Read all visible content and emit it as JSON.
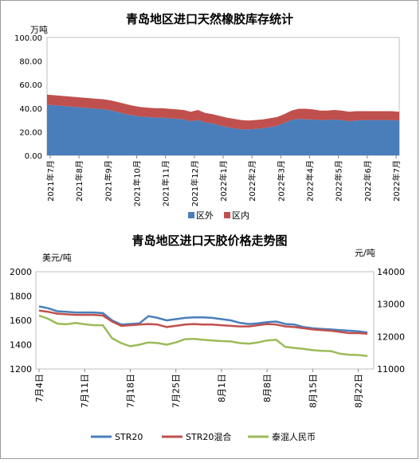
{
  "chart_data": [
    {
      "type": "area",
      "title": "青岛地区进口天然橡胶库存统计",
      "ylabel": "万吨",
      "ylim": [
        0,
        100
      ],
      "yticks": [
        "0.00",
        "20.00",
        "40.00",
        "60.00",
        "80.00",
        "100.00"
      ],
      "xticks": [
        "2021年7月",
        "2021年8月",
        "2021年9月",
        "2021年10月",
        "2021年11月",
        "2021年12月",
        "2022年1月",
        "2022年2月",
        "2022年3月",
        "2022年4月",
        "2022年5月",
        "2022年6月",
        "2022年7月"
      ],
      "legend_position": "bottom",
      "grid": false,
      "series": [
        {
          "name": "区外",
          "color": "#4A7EBB",
          "values": [
            43,
            42.5,
            42,
            41.5,
            41,
            40.5,
            40,
            39.5,
            39,
            38,
            36.5,
            35,
            34,
            33,
            32.5,
            32,
            32,
            31.5,
            31,
            30.5,
            29,
            30,
            28,
            27,
            25.5,
            24,
            23,
            22,
            22,
            22.5,
            23,
            24,
            25,
            27.5,
            30,
            31,
            30.5,
            30.5,
            30,
            30,
            30.5,
            30,
            29,
            29.5,
            30,
            30,
            30,
            30,
            30,
            29.5
          ]
        },
        {
          "name": "区内",
          "color": "#C0504D",
          "values": [
            8.5,
            8.5,
            8.5,
            8.5,
            8.5,
            8.5,
            8.5,
            8.5,
            8.5,
            8.5,
            8.5,
            8.5,
            8,
            8,
            8,
            8,
            8,
            8,
            8,
            8,
            8,
            8.5,
            8,
            8,
            8,
            8,
            8,
            8,
            7.5,
            7.5,
            7.5,
            7.5,
            7.5,
            7.5,
            8,
            8.5,
            9,
            8.5,
            8,
            8,
            8,
            8,
            8,
            8,
            7.5,
            7.5,
            7.5,
            7.5,
            7.5,
            7.5
          ]
        }
      ]
    },
    {
      "type": "line",
      "title": "青岛地区进口天胶价格走势图",
      "ylabel": "美元/吨",
      "y2label": "元/吨",
      "ylim": [
        1200,
        2000
      ],
      "y2lim": [
        11000,
        14000
      ],
      "yticks": [
        "1200",
        "1400",
        "1600",
        "1800",
        "2000"
      ],
      "y2ticks": [
        "11000",
        "12000",
        "13000",
        "14000"
      ],
      "xticks": [
        "7月4日",
        "7月11日",
        "7月18日",
        "7月25日",
        "8月1日",
        "8月8日",
        "8月15日",
        "8月22日"
      ],
      "xtick_index": [
        0,
        5,
        10,
        15,
        20,
        25,
        30,
        35
      ],
      "legend_position": "bottom",
      "grid": false,
      "series": [
        {
          "name": "STR20",
          "axis": "left",
          "color": "#4A7EBB",
          "values": [
            1715,
            1700,
            1675,
            1670,
            1665,
            1665,
            1665,
            1660,
            1600,
            1565,
            1570,
            1575,
            1635,
            1620,
            1600,
            1610,
            1620,
            1625,
            1625,
            1620,
            1610,
            1600,
            1580,
            1570,
            1575,
            1585,
            1590,
            1570,
            1565,
            1545,
            1535,
            1530,
            1525,
            1520,
            1515,
            1510,
            1500
          ]
        },
        {
          "name": "STR20混合",
          "axis": "left",
          "color": "#C0504D",
          "values": [
            1680,
            1670,
            1655,
            1650,
            1645,
            1645,
            1645,
            1640,
            1590,
            1555,
            1560,
            1565,
            1570,
            1565,
            1545,
            1555,
            1565,
            1570,
            1565,
            1565,
            1560,
            1555,
            1550,
            1550,
            1560,
            1570,
            1565,
            1550,
            1545,
            1535,
            1525,
            1520,
            1515,
            1505,
            1495,
            1495,
            1490
          ]
        },
        {
          "name": "泰混人民币",
          "axis": "right",
          "color": "#9BBB59",
          "values": [
            12650,
            12550,
            12400,
            12380,
            12420,
            12380,
            12350,
            12350,
            11950,
            11800,
            11700,
            11750,
            11820,
            11800,
            11750,
            11820,
            11920,
            11930,
            11900,
            11880,
            11860,
            11850,
            11800,
            11780,
            11820,
            11880,
            11900,
            11680,
            11650,
            11620,
            11580,
            11560,
            11550,
            11470,
            11440,
            11430,
            11400
          ]
        }
      ]
    }
  ]
}
